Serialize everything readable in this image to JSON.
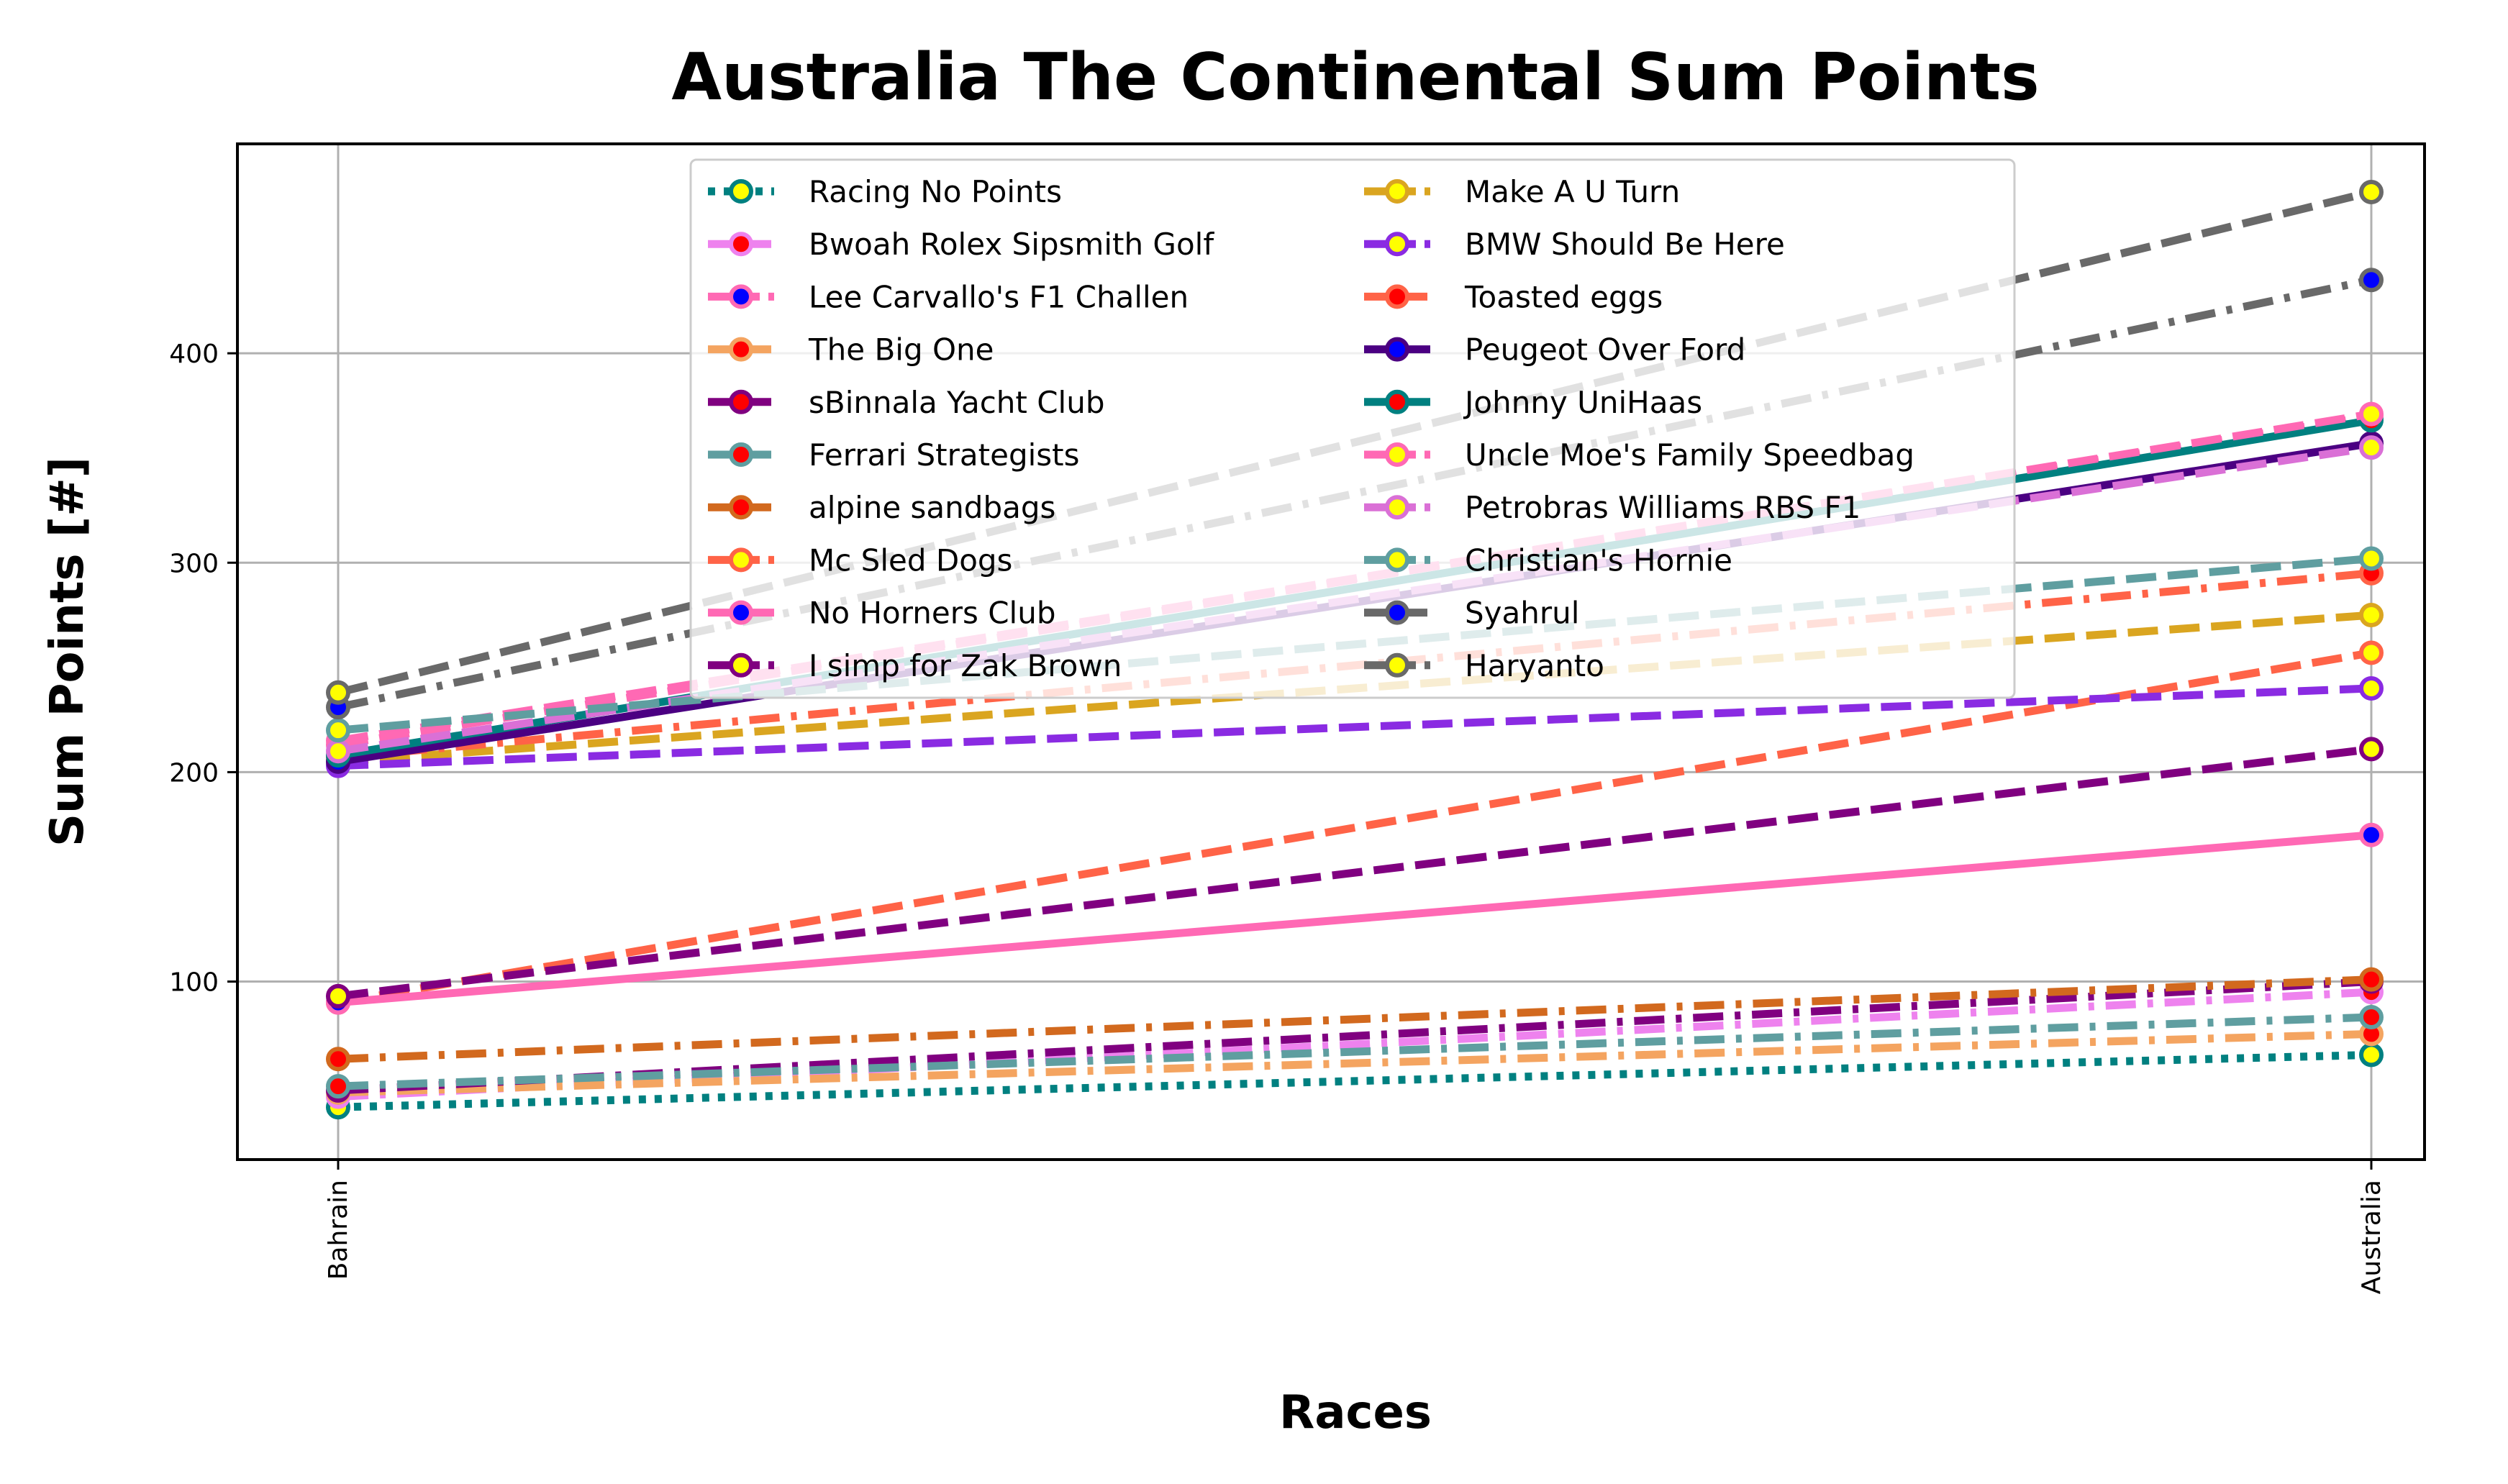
{
  "chart_data": {
    "type": "line",
    "title": "Australia The Continental Sum Points",
    "xlabel": "Races",
    "ylabel": "Sum Points [#]",
    "categories": [
      "Bahrain",
      "Australia"
    ],
    "ylim": [
      15,
      500
    ],
    "yticks": [
      100,
      200,
      300,
      400
    ],
    "grid": true,
    "legend_position": "upper-center",
    "series": [
      {
        "name": "Racing No Points",
        "values": [
          40,
          65
        ],
        "color": "#008080",
        "marker_face": "#ffff00",
        "dash": "dotted"
      },
      {
        "name": "Bwoah Rolex Sipsmith Golf",
        "values": [
          45,
          95
        ],
        "color": "#ee82ee",
        "marker_face": "#ff0000",
        "dash": "dashdot"
      },
      {
        "name": "Lee Carvallo's F1 Challen",
        "values": [
          215,
          370
        ],
        "color": "#ff69b4",
        "marker_face": "#0000ff",
        "dash": "dashed"
      },
      {
        "name": "The Big One",
        "values": [
          47,
          75
        ],
        "color": "#f4a460",
        "marker_face": "#ff0000",
        "dash": "dashdot"
      },
      {
        "name": "sBinnala Yacht Club",
        "values": [
          48,
          100
        ],
        "color": "#800080",
        "marker_face": "#ff0000",
        "dash": "dashdot"
      },
      {
        "name": "Ferrari Strategists",
        "values": [
          50,
          83
        ],
        "color": "#5f9ea0",
        "marker_face": "#ff0000",
        "dash": "dashdot"
      },
      {
        "name": "alpine sandbags",
        "values": [
          63,
          101
        ],
        "color": "#d2691e",
        "marker_face": "#ff0000",
        "dash": "dashdot"
      },
      {
        "name": "Mc Sled Dogs",
        "values": [
          90,
          257
        ],
        "color": "#ff6347",
        "marker_face": "#ffff00",
        "dash": "dashed"
      },
      {
        "name": "No Horners Club",
        "values": [
          90,
          170
        ],
        "color": "#ff69b4",
        "marker_face": "#0000ff",
        "dash": "solid"
      },
      {
        "name": "I simp for Zak Brown",
        "values": [
          93,
          211
        ],
        "color": "#800080",
        "marker_face": "#ffff00",
        "dash": "dashed"
      },
      {
        "name": "Make A U Turn",
        "values": [
          205,
          275
        ],
        "color": "#daa520",
        "marker_face": "#ffff00",
        "dash": "dashed"
      },
      {
        "name": "BMW Should Be Here",
        "values": [
          203,
          240
        ],
        "color": "#8a2be2",
        "marker_face": "#ffff00",
        "dash": "dashed"
      },
      {
        "name": "Toasted eggs",
        "values": [
          207,
          295
        ],
        "color": "#ff6347",
        "marker_face": "#ff0000",
        "dash": "dashdot"
      },
      {
        "name": "Peugeot Over Ford",
        "values": [
          205,
          357
        ],
        "color": "#4b0082",
        "marker_face": "#0000ff",
        "dash": "solid"
      },
      {
        "name": "Johnny UniHaas",
        "values": [
          208,
          368
        ],
        "color": "#008080",
        "marker_face": "#ff0000",
        "dash": "solid"
      },
      {
        "name": "Uncle Moe's Family Speedbag",
        "values": [
          213,
          371
        ],
        "color": "#ff69b4",
        "marker_face": "#ffff00",
        "dash": "dashed"
      },
      {
        "name": "Petrobras Williams RBS F1",
        "values": [
          210,
          355
        ],
        "color": "#da70d6",
        "marker_face": "#ffff00",
        "dash": "dashed"
      },
      {
        "name": "Christian's Hornie",
        "values": [
          220,
          302
        ],
        "color": "#5f9ea0",
        "marker_face": "#ffff00",
        "dash": "dashed"
      },
      {
        "name": "Syahrul",
        "values": [
          231,
          435
        ],
        "color": "#696969",
        "marker_face": "#0000ff",
        "dash": "dashdot"
      },
      {
        "name": "Haryanto",
        "values": [
          238,
          477
        ],
        "color": "#696969",
        "marker_face": "#ffff00",
        "dash": "dashed"
      }
    ]
  }
}
